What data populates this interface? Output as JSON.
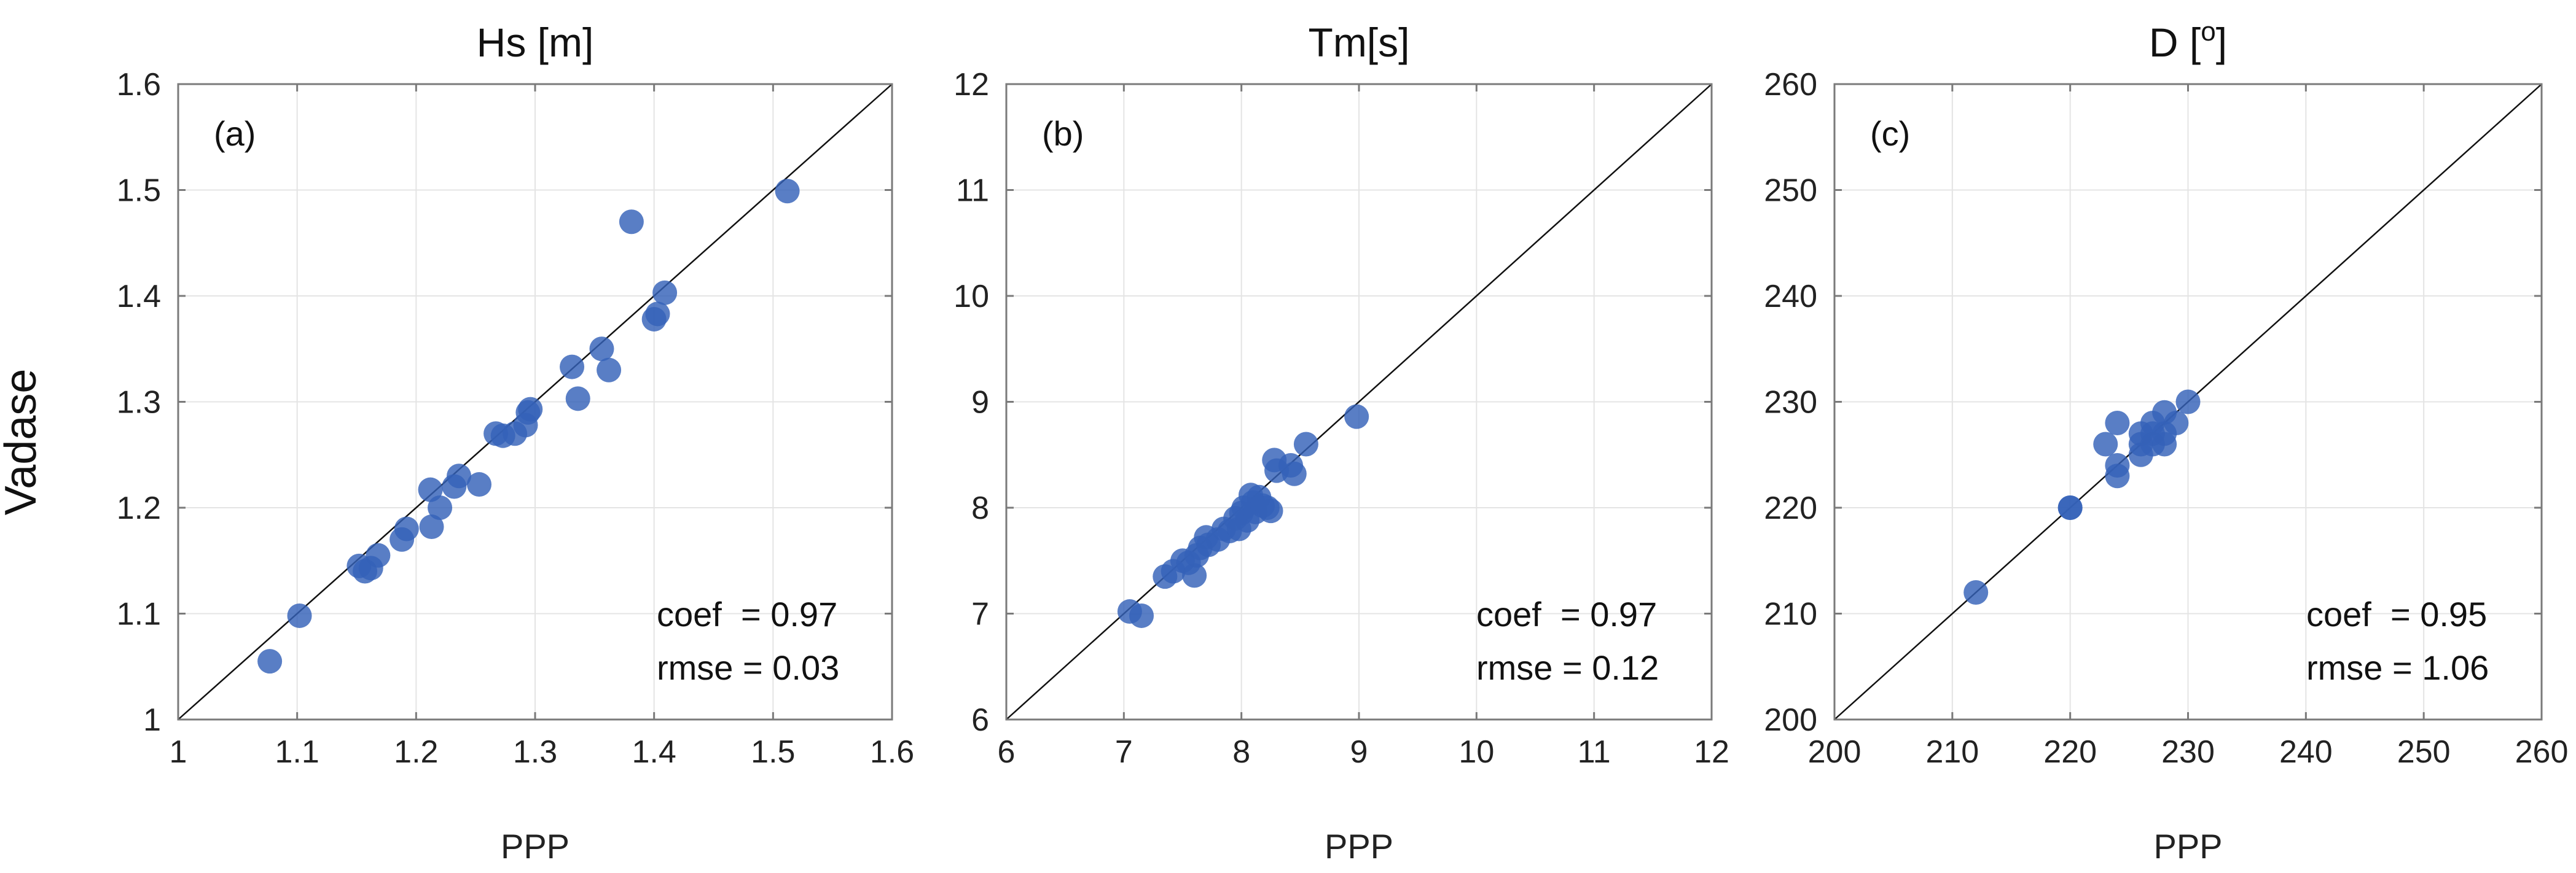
{
  "figure": {
    "shared_ylabel": "Vadase",
    "marker_color": "#3462B8",
    "marker_opacity": 0.82,
    "grid_color": "#E4E4E4",
    "axis_color": "#7A7A7A",
    "identity_line_color": "#111111"
  },
  "chart_data": [
    {
      "type": "scatter",
      "title": "Hs [m]",
      "title_superscript": "",
      "title_suffix": "",
      "panel_label": "(a)",
      "xlabel": "PPP",
      "ylabel": "Vadase",
      "xlim": [
        1,
        1.6
      ],
      "ylim": [
        1,
        1.6
      ],
      "xticks": [
        1,
        1.1,
        1.2,
        1.3,
        1.4,
        1.5,
        1.6
      ],
      "yticks": [
        1,
        1.1,
        1.2,
        1.3,
        1.4,
        1.5,
        1.6
      ],
      "xtick_labels": [
        "1",
        "1.1",
        "1.2",
        "1.3",
        "1.4",
        "1.5",
        "1.6"
      ],
      "ytick_labels": [
        "1",
        "1.1",
        "1.2",
        "1.3",
        "1.4",
        "1.5",
        "1.6"
      ],
      "grid": true,
      "identity_line": true,
      "stats": {
        "coef": "coef  = 0.97",
        "rmse": "rmse = 0.03"
      },
      "points": [
        [
          1.077,
          1.055
        ],
        [
          1.102,
          1.098
        ],
        [
          1.152,
          1.145
        ],
        [
          1.157,
          1.14
        ],
        [
          1.162,
          1.143
        ],
        [
          1.168,
          1.155
        ],
        [
          1.188,
          1.17
        ],
        [
          1.192,
          1.18
        ],
        [
          1.212,
          1.217
        ],
        [
          1.213,
          1.182
        ],
        [
          1.22,
          1.2
        ],
        [
          1.232,
          1.22
        ],
        [
          1.236,
          1.23
        ],
        [
          1.253,
          1.222
        ],
        [
          1.267,
          1.27
        ],
        [
          1.273,
          1.268
        ],
        [
          1.283,
          1.27
        ],
        [
          1.292,
          1.278
        ],
        [
          1.294,
          1.29
        ],
        [
          1.296,
          1.293
        ],
        [
          1.331,
          1.333
        ],
        [
          1.336,
          1.303
        ],
        [
          1.356,
          1.35
        ],
        [
          1.362,
          1.33
        ],
        [
          1.381,
          1.47
        ],
        [
          1.4,
          1.378
        ],
        [
          1.403,
          1.383
        ],
        [
          1.409,
          1.403
        ],
        [
          1.512,
          1.499
        ]
      ]
    },
    {
      "type": "scatter",
      "title": "Tm[s]",
      "title_superscript": "",
      "title_suffix": "",
      "panel_label": "(b)",
      "xlabel": "PPP",
      "ylabel": "Vadase",
      "xlim": [
        6,
        12
      ],
      "ylim": [
        6,
        12
      ],
      "xticks": [
        6,
        7,
        8,
        9,
        10,
        11,
        12
      ],
      "yticks": [
        6,
        7,
        8,
        9,
        10,
        11,
        12
      ],
      "xtick_labels": [
        "6",
        "7",
        "8",
        "9",
        "10",
        "11",
        "12"
      ],
      "ytick_labels": [
        "6",
        "7",
        "8",
        "9",
        "10",
        "11",
        "12"
      ],
      "grid": true,
      "identity_line": true,
      "stats": {
        "coef": "coef  = 0.97",
        "rmse": "rmse = 0.12"
      },
      "points": [
        [
          7.05,
          7.02
        ],
        [
          7.15,
          6.98
        ],
        [
          7.35,
          7.35
        ],
        [
          7.42,
          7.4
        ],
        [
          7.5,
          7.5
        ],
        [
          7.55,
          7.48
        ],
        [
          7.6,
          7.36
        ],
        [
          7.62,
          7.55
        ],
        [
          7.65,
          7.62
        ],
        [
          7.7,
          7.72
        ],
        [
          7.72,
          7.65
        ],
        [
          7.8,
          7.7
        ],
        [
          7.85,
          7.8
        ],
        [
          7.9,
          7.78
        ],
        [
          7.95,
          7.9
        ],
        [
          7.98,
          7.8
        ],
        [
          8.0,
          7.95
        ],
        [
          8.02,
          8.0
        ],
        [
          8.05,
          7.88
        ],
        [
          8.08,
          8.12
        ],
        [
          8.1,
          8.05
        ],
        [
          8.12,
          7.96
        ],
        [
          8.15,
          8.1
        ],
        [
          8.18,
          8.02
        ],
        [
          8.22,
          8.0
        ],
        [
          8.25,
          7.97
        ],
        [
          8.28,
          8.45
        ],
        [
          8.3,
          8.35
        ],
        [
          8.42,
          8.4
        ],
        [
          8.45,
          8.32
        ],
        [
          8.55,
          8.6
        ],
        [
          8.98,
          8.86
        ]
      ]
    },
    {
      "type": "scatter",
      "title": "D [",
      "title_superscript": "o",
      "title_suffix": "]",
      "panel_label": "(c)",
      "xlabel": "PPP",
      "ylabel": "Vadase",
      "xlim": [
        200,
        260
      ],
      "ylim": [
        200,
        260
      ],
      "xticks": [
        200,
        210,
        220,
        230,
        240,
        250,
        260
      ],
      "yticks": [
        200,
        210,
        220,
        230,
        240,
        250,
        260
      ],
      "xtick_labels": [
        "200",
        "210",
        "220",
        "230",
        "240",
        "250",
        "260"
      ],
      "ytick_labels": [
        "200",
        "210",
        "220",
        "230",
        "240",
        "250",
        "260"
      ],
      "grid": true,
      "identity_line": true,
      "stats": {
        "coef": "coef  = 0.95",
        "rmse": "rmse = 1.06"
      },
      "points": [
        [
          212,
          212
        ],
        [
          220,
          220
        ],
        [
          220,
          220
        ],
        [
          223,
          226
        ],
        [
          224,
          224
        ],
        [
          224,
          223
        ],
        [
          224,
          228
        ],
        [
          226,
          226
        ],
        [
          226,
          225
        ],
        [
          227,
          227
        ],
        [
          227,
          228
        ],
        [
          227,
          226
        ],
        [
          228,
          229
        ],
        [
          228,
          226
        ],
        [
          228,
          227
        ],
        [
          229,
          228
        ],
        [
          230,
          230
        ],
        [
          226,
          227
        ]
      ]
    }
  ]
}
